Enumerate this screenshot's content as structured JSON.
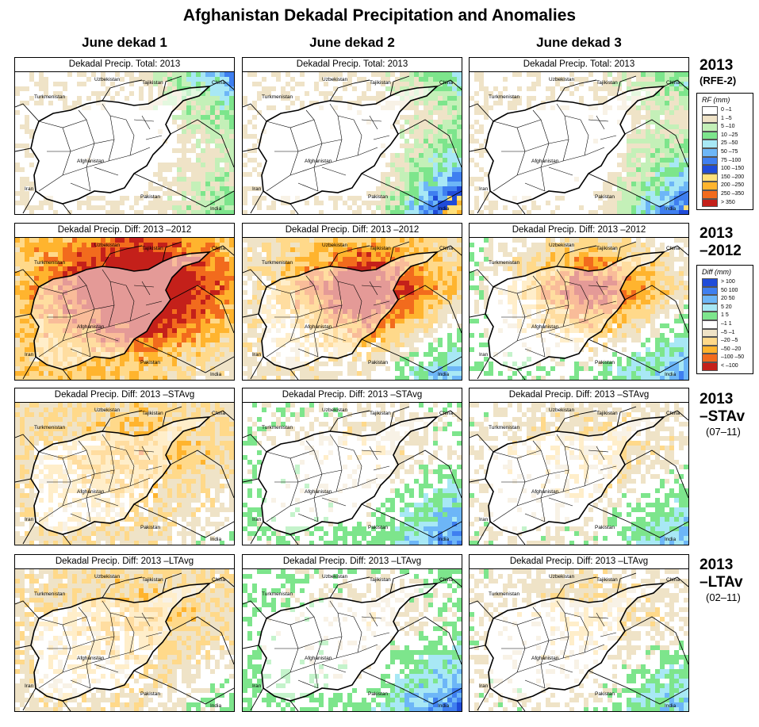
{
  "title": "Afghanistan Dekadal Precipitation and Anomalies",
  "columns": [
    "June dekad 1",
    "June dekad 2",
    "June dekad 3"
  ],
  "rows": [
    {
      "id": "total",
      "panel_title": "Dekadal Precip. Total: 2013",
      "label_big": "2013",
      "label_small": "(RFE-2)"
    },
    {
      "id": "diff2012",
      "panel_title": "Dekadal Precip. Diff: 2013 –2012",
      "label_big": "2013",
      "label_big2": "–2012"
    },
    {
      "id": "diffstavg",
      "panel_title": "Dekadal Precip. Diff: 2013 –STAvg",
      "label_big": "2013",
      "label_big2": "–STAv",
      "label_small": "(07–11)"
    },
    {
      "id": "diffltavg",
      "panel_title": "Dekadal Precip. Diff: 2013 –LTAvg",
      "label_big": "2013",
      "label_big2": "–LTAv",
      "label_small": "(02–11)"
    }
  ],
  "place_labels": {
    "uzbekistan": "Uzbekistan",
    "tajikistan": "Tajikistan",
    "china": "China",
    "turkmenistan": "Turkmenistan",
    "afghanistan": "Afghanistan",
    "iran": "Iran",
    "pakistan": "Pakistan",
    "india": "India"
  },
  "legend_rf": {
    "title": "RF (mm)",
    "items": [
      {
        "label": "0 –1",
        "color": "#ffffff"
      },
      {
        "label": "1 –5",
        "color": "#efe3c7"
      },
      {
        "label": "5 –10",
        "color": "#c4f0b8"
      },
      {
        "label": "10 –25",
        "color": "#7de58c"
      },
      {
        "label": "25 –50",
        "color": "#a8e8f5"
      },
      {
        "label": "50 –75",
        "color": "#6db6f7"
      },
      {
        "label": "75 –100",
        "color": "#3f7ff0"
      },
      {
        "label": "100 –150",
        "color": "#1f4bd9"
      },
      {
        "label": "150 –200",
        "color": "#ffe07a"
      },
      {
        "label": "200 –250",
        "color": "#ffb42e"
      },
      {
        "label": "250 –350",
        "color": "#f26b1d"
      },
      {
        "label": "> 350",
        "color": "#c4201a"
      }
    ]
  },
  "legend_diff": {
    "title": "Diff (mm)",
    "items": [
      {
        "label": "> 100",
        "color": "#1f4bd9"
      },
      {
        "label": "50  100",
        "color": "#3f7ff0"
      },
      {
        "label": "20  50",
        "color": "#6db6f7"
      },
      {
        "label": "5  20",
        "color": "#a8e8f5"
      },
      {
        "label": "1  5",
        "color": "#7de58c"
      },
      {
        "label": "–1  1",
        "color": "#ffffff"
      },
      {
        "label": "–5  –1",
        "color": "#efe3c7"
      },
      {
        "label": "–20  –5",
        "color": "#ffd98a"
      },
      {
        "label": "–50  –20",
        "color": "#ffb42e"
      },
      {
        "label": "–100  –50",
        "color": "#f26b1d"
      },
      {
        "label": "< –100",
        "color": "#c4201a"
      }
    ]
  }
}
